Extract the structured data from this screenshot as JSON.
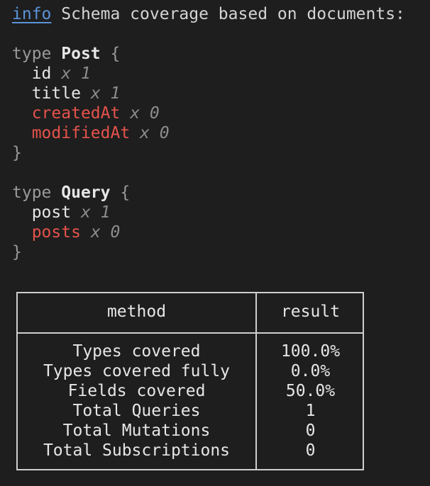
{
  "log": {
    "level": "info",
    "message": "Schema coverage based on documents:"
  },
  "types": [
    {
      "keyword": "type",
      "name": "Post",
      "open": "{",
      "close": "}",
      "fields": [
        {
          "name": "id",
          "count": "x 1",
          "covered": true
        },
        {
          "name": "title",
          "count": "x 1",
          "covered": true
        },
        {
          "name": "createdAt",
          "count": "x 0",
          "covered": false
        },
        {
          "name": "modifiedAt",
          "count": "x 0",
          "covered": false
        }
      ]
    },
    {
      "keyword": "type",
      "name": "Query",
      "open": "{",
      "close": "}",
      "fields": [
        {
          "name": "post",
          "count": "x 1",
          "covered": true
        },
        {
          "name": "posts",
          "count": "x 0",
          "covered": false
        }
      ]
    }
  ],
  "table": {
    "headers": [
      "method",
      "result"
    ],
    "rows": [
      [
        "Types covered",
        "100.0%"
      ],
      [
        "Types covered fully",
        "0.0%"
      ],
      [
        "Fields covered",
        "50.0%"
      ],
      [
        "Total Queries",
        "1"
      ],
      [
        "Total Mutations",
        "0"
      ],
      [
        "Total Subscriptions",
        "0"
      ]
    ]
  },
  "colors": {
    "background": "#1e1e1e",
    "info": "#5b93d9",
    "uncovered": "#e5534b",
    "text": "#e6e6e6"
  }
}
